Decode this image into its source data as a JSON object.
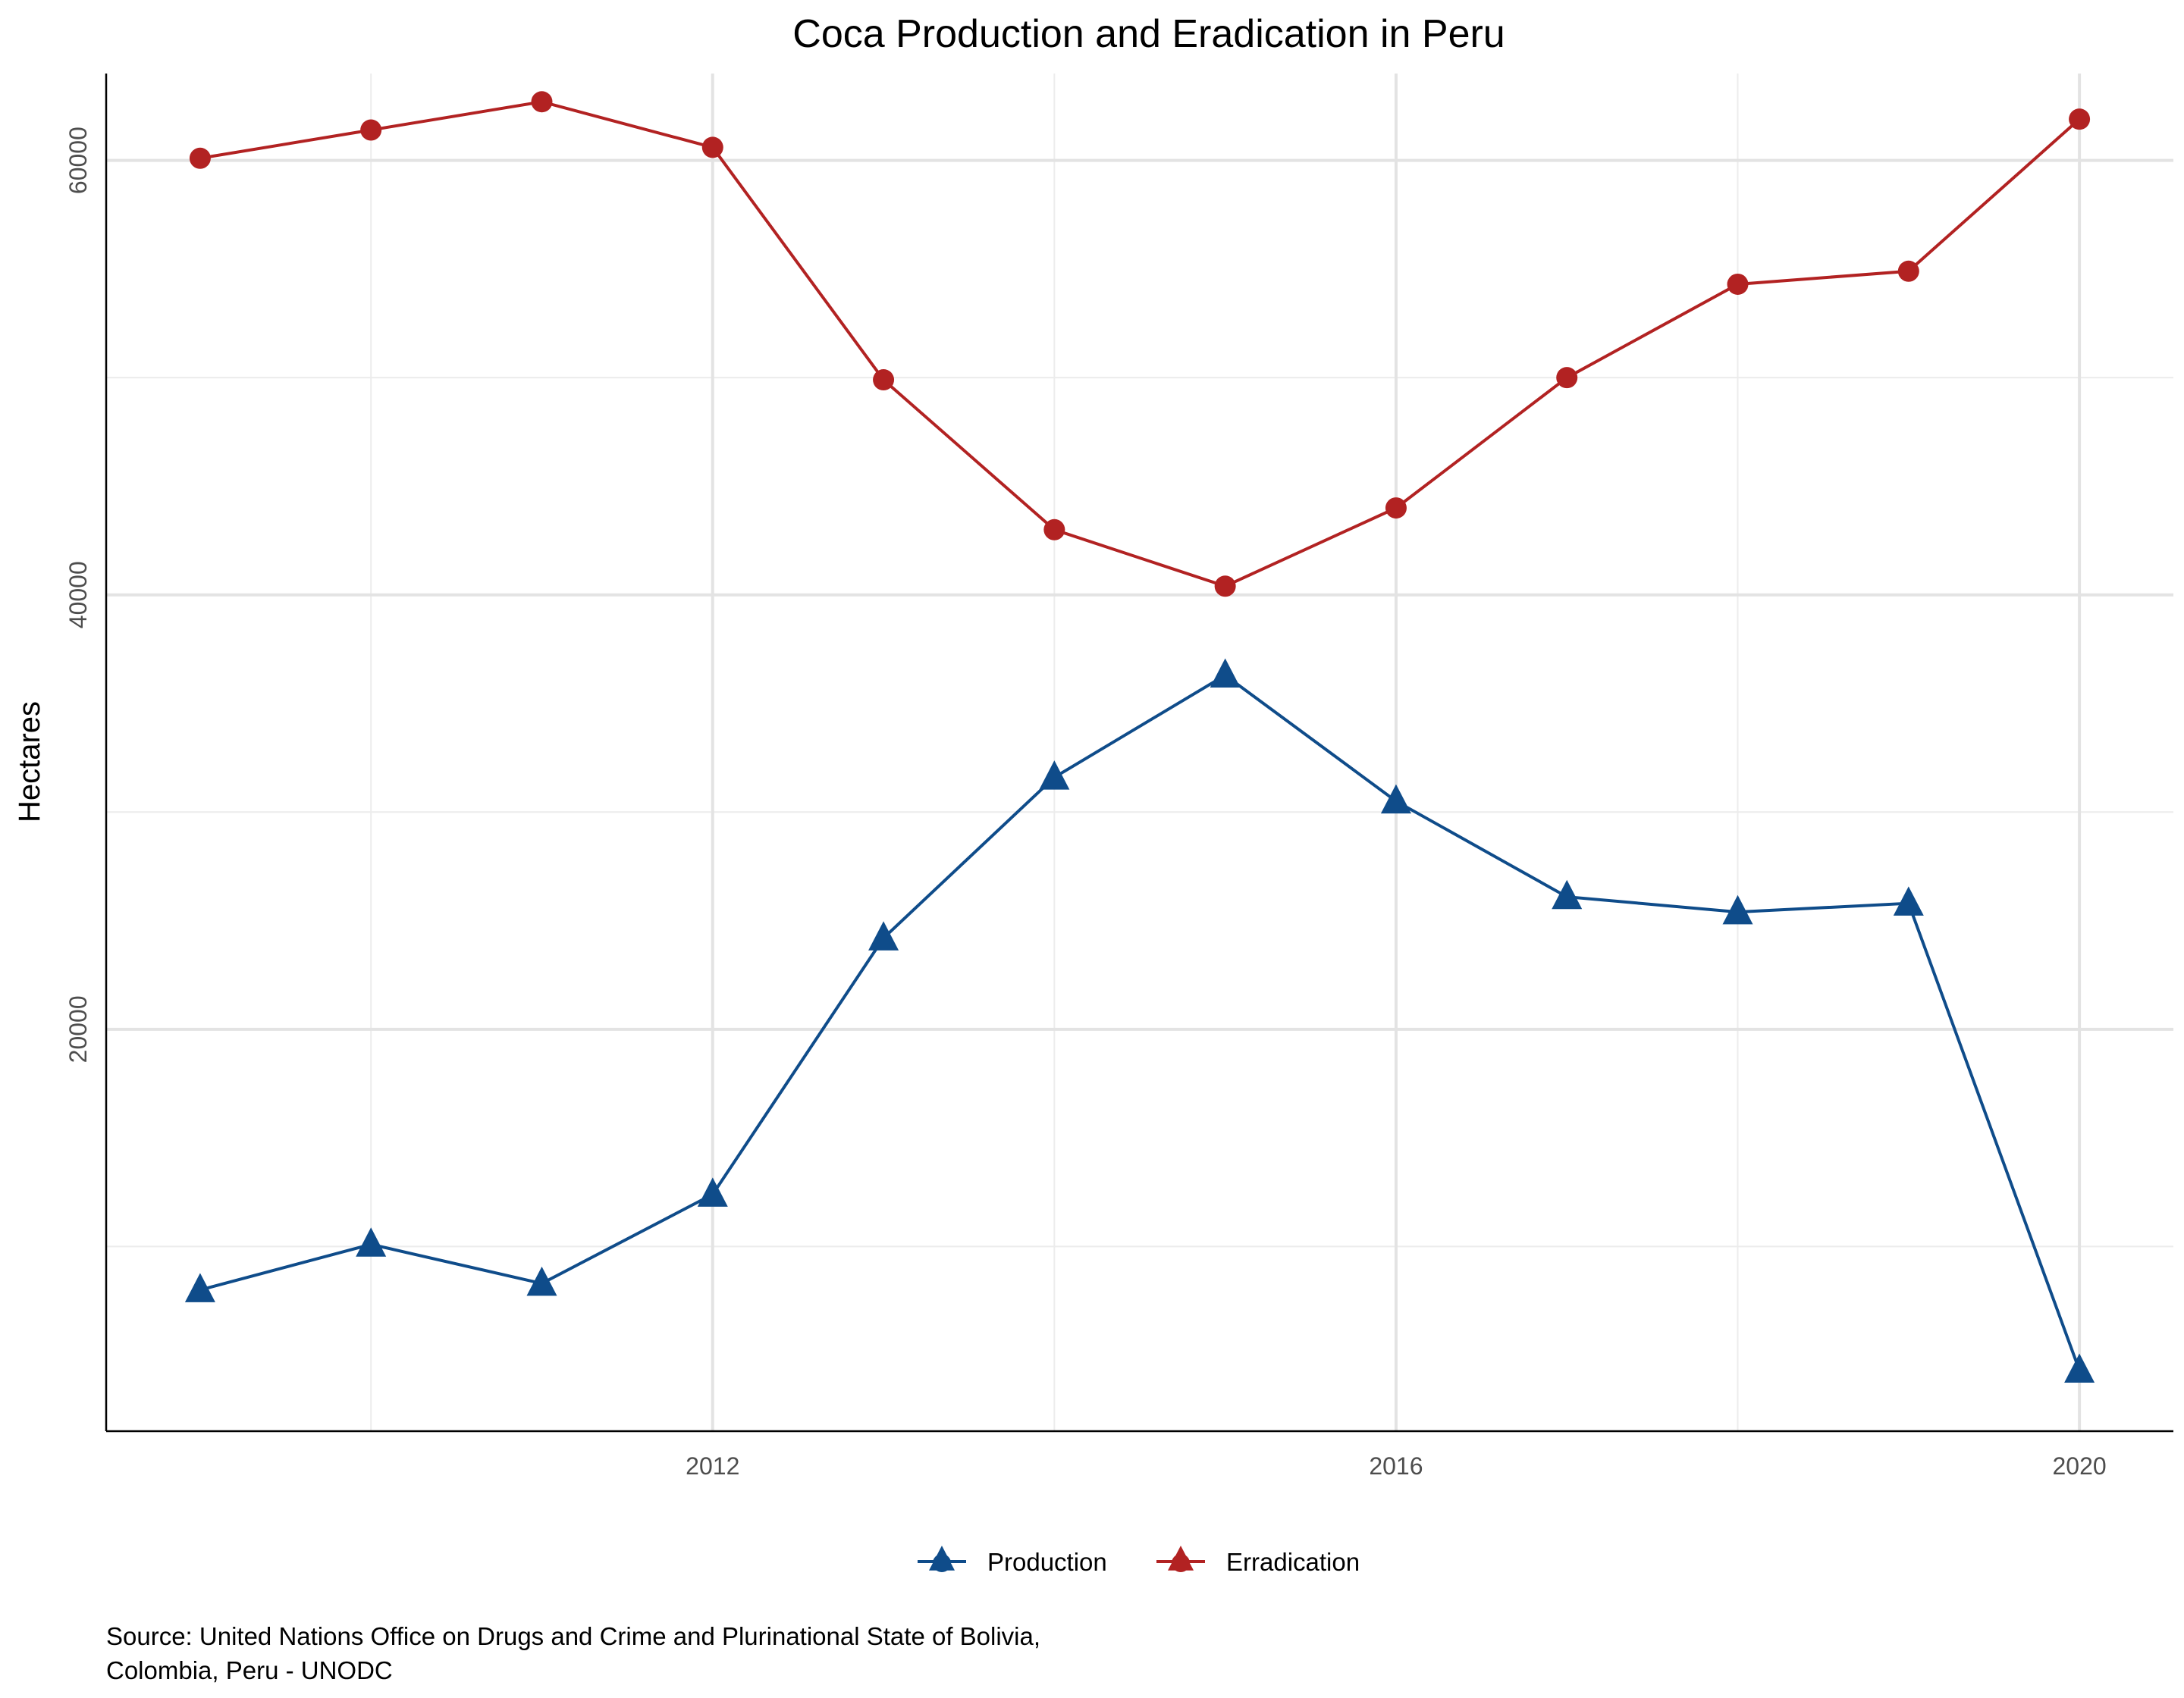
{
  "chart_data": {
    "type": "line",
    "title": "Coca Production and Eradication in Peru",
    "xlabel": "",
    "ylabel": "Hectares",
    "x": [
      2009,
      2010,
      2011,
      2012,
      2013,
      2014,
      2015,
      2016,
      2017,
      2018,
      2019,
      2020
    ],
    "xlim": [
      2008.45,
      2020.55
    ],
    "ylim": [
      1500,
      64000
    ],
    "x_ticks": [
      2012,
      2016,
      2020
    ],
    "x_tick_labels": [
      "2012",
      "2016",
      "2020"
    ],
    "y_ticks": [
      20000,
      40000,
      60000
    ],
    "y_tick_labels": [
      "20000",
      "40000",
      "60000"
    ],
    "y_minor": [
      10000,
      30000,
      50000
    ],
    "x_minor": [
      2010,
      2014,
      2018
    ],
    "grid": true,
    "legend_position": "bottom",
    "series": [
      {
        "name": "Production",
        "color": "#0f4c8a",
        "marker": "triangle",
        "values": [
          8000,
          10100,
          8300,
          12400,
          24200,
          31600,
          36300,
          30500,
          26100,
          25400,
          25800,
          4300
        ]
      },
      {
        "name": "Erradication",
        "color": "#b22222",
        "marker": "circle",
        "values": [
          60100,
          61400,
          62700,
          60600,
          49900,
          43000,
          40400,
          44000,
          50000,
          54300,
          54900,
          61900
        ]
      }
    ],
    "caption": [
      "Source: United Nations Office on Drugs and Crime and Plurinational State of Bolivia,",
      "Colombia, Peru - UNODC"
    ]
  }
}
